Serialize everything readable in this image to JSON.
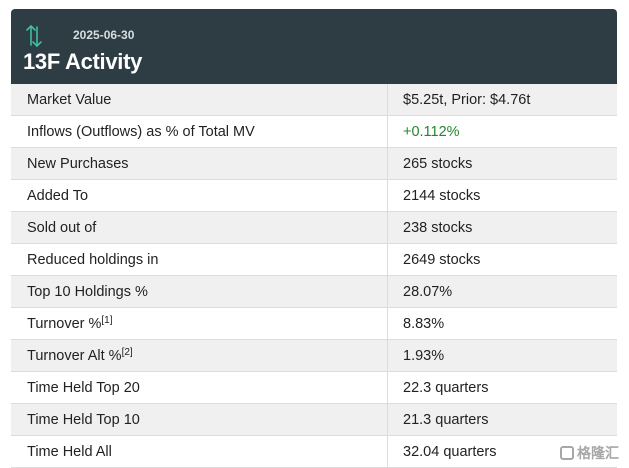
{
  "header": {
    "date": "2025-06-30",
    "title": "13F Activity",
    "icon": "up-down-arrows-icon",
    "bg_color": "#2d3d43",
    "icon_color": "#3fbf9f"
  },
  "rows": [
    {
      "label": "Market Value",
      "value": "$5.25t, Prior: $4.76t"
    },
    {
      "label": "Inflows (Outflows) as % of Total MV",
      "value": "+0.112%",
      "value_color": "#22882a"
    },
    {
      "label": "New Purchases",
      "value": "265 stocks"
    },
    {
      "label": "Added To",
      "value": "2144 stocks"
    },
    {
      "label": "Sold out of",
      "value": "238 stocks"
    },
    {
      "label": "Reduced holdings in",
      "value": "2649 stocks"
    },
    {
      "label": "Top 10 Holdings %",
      "value": "28.07%"
    },
    {
      "label": "Turnover %",
      "footnote": "[1]",
      "value": "8.83%"
    },
    {
      "label": "Turnover Alt %",
      "footnote": "[2]",
      "value": "1.93%"
    },
    {
      "label": "Time Held Top 20",
      "value": "22.3 quarters"
    },
    {
      "label": "Time Held Top 10",
      "value": "21.3 quarters"
    },
    {
      "label": "Time Held All",
      "value": "32.04 quarters"
    }
  ],
  "watermark": {
    "text": "格隆汇",
    "icon": "gelonghui-logo-icon"
  }
}
